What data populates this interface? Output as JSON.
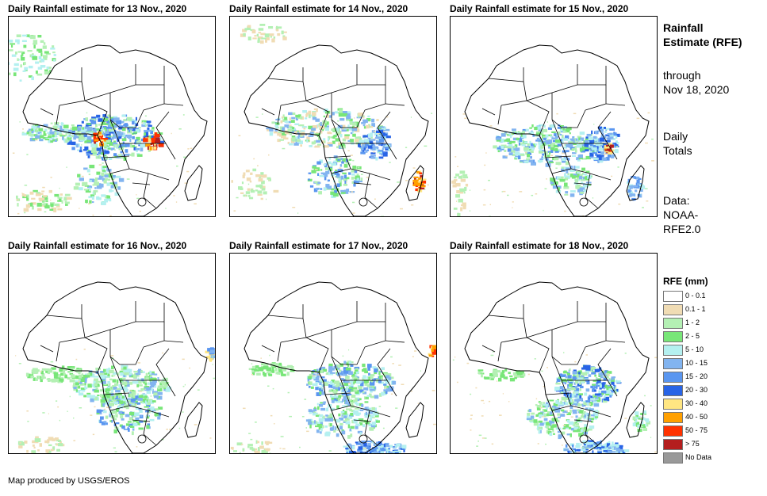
{
  "panels": [
    {
      "title": "Daily Rainfall estimate for 13 Nov., 2020",
      "focus": "congo-heavy"
    },
    {
      "title": "Daily Rainfall estimate for 14 Nov., 2020",
      "focus": "madagascar-heavy"
    },
    {
      "title": "Daily Rainfall estimate for 15 Nov., 2020",
      "focus": "eastafrica-heavy"
    },
    {
      "title": "Daily Rainfall estimate for 16 Nov., 2020",
      "focus": "central-moderate"
    },
    {
      "title": "Daily Rainfall estimate for 17 Nov., 2020",
      "focus": "south-band"
    },
    {
      "title": "Daily Rainfall estimate for 18 Nov., 2020",
      "focus": "south-east"
    }
  ],
  "sidebar": {
    "title": "Rainfall Estimate (RFE)",
    "through": "through",
    "date": "Nov 18, 2020",
    "totals": "Daily Totals",
    "data_label": "Data:",
    "data_source": "NOAA-RFE2.0"
  },
  "legend": {
    "title": "RFE (mm)",
    "items": [
      {
        "label": "0 - 0.1",
        "color": "#ffffff"
      },
      {
        "label": "0.1 - 1",
        "color": "#f0dcb4"
      },
      {
        "label": "1 - 2",
        "color": "#b4f0b4"
      },
      {
        "label": "2 - 5",
        "color": "#78e678"
      },
      {
        "label": "5 - 10",
        "color": "#b4f0f0"
      },
      {
        "label": "10 - 15",
        "color": "#82b4f0"
      },
      {
        "label": "15 - 20",
        "color": "#5a96f0"
      },
      {
        "label": "20 - 30",
        "color": "#2864e6"
      },
      {
        "label": "30 - 40",
        "color": "#ffe682"
      },
      {
        "label": "40 - 50",
        "color": "#ffa000"
      },
      {
        "label": "50 - 75",
        "color": "#ff3200"
      },
      {
        "label": "> 75",
        "color": "#b41e1e"
      },
      {
        "label": "No Data",
        "color": "#999999"
      }
    ]
  },
  "credit": "Map produced by USGS/EROS"
}
